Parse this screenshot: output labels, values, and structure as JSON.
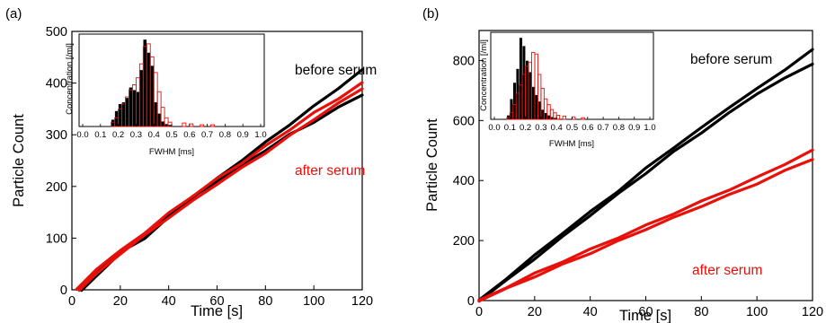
{
  "chart_data": [
    {
      "panel_label": "(a)",
      "type": "line",
      "xlabel": "Time [s]",
      "ylabel": "Particle Count",
      "xlim": [
        0,
        120
      ],
      "ylim": [
        0,
        500
      ],
      "xticks": [
        0,
        20,
        40,
        60,
        80,
        100,
        120
      ],
      "yticks": [
        0,
        100,
        200,
        300,
        400,
        500
      ],
      "annotations": [
        {
          "text": "before serum",
          "color": "#000000"
        },
        {
          "text": "after serum",
          "color": "#e8100a"
        }
      ],
      "series": [
        {
          "color": "#000000",
          "x": [
            2,
            10,
            20,
            30,
            40,
            50,
            60,
            70,
            80,
            90,
            100,
            110,
            120
          ],
          "y": [
            0,
            38,
            72,
            100,
            140,
            180,
            215,
            250,
            285,
            320,
            355,
            390,
            425
          ]
        },
        {
          "color": "#000000",
          "x": [
            4,
            10,
            20,
            30,
            40,
            50,
            60,
            70,
            80,
            90,
            100,
            110,
            120
          ],
          "y": [
            0,
            25,
            72,
            108,
            145,
            180,
            210,
            240,
            270,
            300,
            325,
            352,
            378
          ]
        },
        {
          "color": "#e8100a",
          "x": [
            2,
            10,
            20,
            30,
            40,
            50,
            60,
            70,
            80,
            90,
            100,
            110,
            120
          ],
          "y": [
            0,
            40,
            75,
            110,
            148,
            182,
            215,
            245,
            278,
            310,
            342,
            370,
            400
          ]
        },
        {
          "color": "#e8100a",
          "x": [
            3,
            10,
            20,
            30,
            40,
            50,
            60,
            70,
            80,
            90,
            100,
            110,
            120
          ],
          "y": [
            0,
            30,
            70,
            105,
            140,
            172,
            205,
            235,
            265,
            298,
            330,
            360,
            390
          ]
        }
      ],
      "inset": {
        "xlabel": "FWHM [ms]",
        "ylabel": "Concentration [/ml]",
        "xlim": [
          0.0,
          1.0
        ],
        "xticks": [
          "0.0",
          "0.1",
          "0.2",
          "0.3",
          "0.4",
          "0.5",
          "0.6",
          "0.7",
          "0.8",
          "0.9",
          "1.0"
        ],
        "bin_width": 0.02,
        "bins_start": [
          0.16,
          0.18,
          0.2,
          0.22,
          0.24,
          0.26,
          0.28,
          0.3,
          0.32,
          0.34,
          0.36,
          0.38,
          0.4,
          0.42,
          0.44,
          0.46,
          0.48
        ],
        "series": [
          {
            "color": "#000000",
            "fill": true,
            "values": [
              0.08,
              0.18,
              0.26,
              0.28,
              0.33,
              0.45,
              0.42,
              0.4,
              0.65,
              1.0,
              0.85,
              0.7,
              0.28,
              0.15,
              0.06,
              0.03,
              0.02
            ]
          },
          {
            "color": "#e8100a",
            "fill": false,
            "values": [
              0.05,
              0.1,
              0.2,
              0.26,
              0.34,
              0.42,
              0.48,
              0.56,
              0.72,
              0.92,
              0.95,
              0.8,
              0.62,
              0.4,
              0.22,
              0.1,
              0.05
            ]
          }
        ],
        "tail_bins_start": [
          0.56,
          0.6,
          0.66,
          0.72
        ],
        "tail_values": [
          0.04,
          0.03,
          0.02,
          0.02
        ]
      }
    },
    {
      "panel_label": "(b)",
      "type": "line",
      "xlabel": "Time [s]",
      "ylabel": "Particle Count",
      "xlim": [
        0,
        120
      ],
      "ylim": [
        0,
        900
      ],
      "xticks": [
        0,
        20,
        40,
        60,
        80,
        100,
        120
      ],
      "yticks": [
        0,
        200,
        400,
        600,
        800
      ],
      "annotations": [
        {
          "text": "before serum",
          "color": "#000000"
        },
        {
          "text": "after serum",
          "color": "#e8100a"
        }
      ],
      "series": [
        {
          "color": "#000000",
          "x": [
            0,
            10,
            20,
            30,
            40,
            50,
            60,
            70,
            80,
            90,
            100,
            110,
            120
          ],
          "y": [
            0,
            75,
            150,
            225,
            295,
            365,
            440,
            510,
            575,
            645,
            705,
            770,
            835
          ]
        },
        {
          "color": "#000000",
          "x": [
            0,
            10,
            20,
            30,
            40,
            50,
            60,
            70,
            80,
            90,
            100,
            110,
            120
          ],
          "y": [
            0,
            68,
            140,
            212,
            285,
            355,
            425,
            495,
            560,
            625,
            690,
            740,
            790
          ]
        },
        {
          "color": "#e8100a",
          "x": [
            0,
            10,
            20,
            30,
            40,
            50,
            60,
            70,
            80,
            90,
            100,
            110,
            120
          ],
          "y": [
            0,
            45,
            90,
            130,
            170,
            210,
            250,
            290,
            330,
            370,
            410,
            455,
            500
          ]
        },
        {
          "color": "#e8100a",
          "x": [
            0,
            10,
            20,
            30,
            40,
            50,
            60,
            70,
            80,
            90,
            100,
            110,
            120
          ],
          "y": [
            0,
            40,
            80,
            120,
            158,
            198,
            238,
            276,
            315,
            352,
            390,
            432,
            472
          ]
        }
      ],
      "inset": {
        "xlabel": "FWHM [ms]",
        "ylabel": "Concentration [/ml]",
        "xlim": [
          0.0,
          1.0
        ],
        "xticks": [
          "0.0",
          "0.1",
          "0.2",
          "0.3",
          "0.4",
          "0.5",
          "0.6",
          "0.7",
          "0.8",
          "0.9",
          "1.0"
        ],
        "bin_width": 0.02,
        "bins_start": [
          0.08,
          0.1,
          0.12,
          0.14,
          0.16,
          0.18,
          0.2,
          0.22,
          0.24,
          0.26,
          0.28,
          0.3,
          0.32,
          0.34,
          0.36,
          0.38,
          0.4
        ],
        "series": [
          {
            "color": "#000000",
            "fill": true,
            "values": [
              0.05,
              0.25,
              0.45,
              0.62,
              1.0,
              0.9,
              0.72,
              0.58,
              0.4,
              0.3,
              0.22,
              0.12,
              0.08,
              0.05,
              0.03,
              0.02,
              0.01
            ]
          },
          {
            "color": "#e8100a",
            "fill": false,
            "values": [
              0.02,
              0.08,
              0.18,
              0.32,
              0.42,
              0.55,
              0.65,
              0.7,
              0.82,
              0.8,
              0.55,
              0.38,
              0.25,
              0.18,
              0.12,
              0.08,
              0.05
            ]
          }
        ],
        "tail_bins_start": [
          0.44,
          0.5,
          0.56
        ],
        "tail_values": [
          0.04,
          0.03,
          0.02
        ]
      }
    }
  ]
}
